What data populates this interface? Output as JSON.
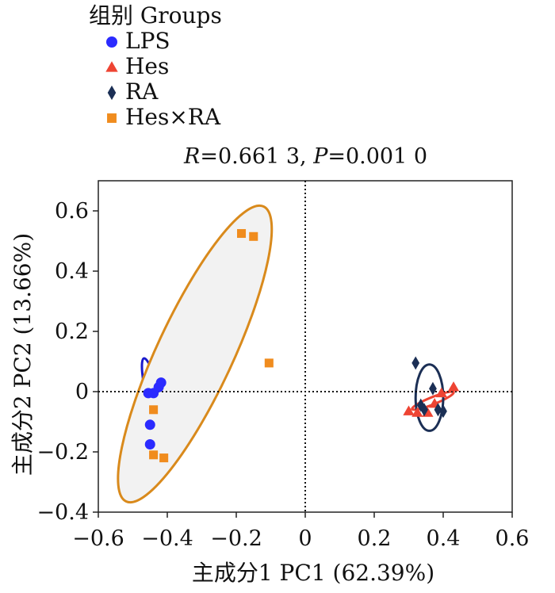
{
  "chart_data": {
    "type": "scatter",
    "title": "",
    "subtitle": {
      "r_label": "R",
      "r_value": "=0.661 3, ",
      "p_label": "P",
      "p_value": "=0.001 0"
    },
    "xlabel": "主成分1 PC1 (62.39%)",
    "ylabel": "主成分2 PC2 (13.66%)",
    "xlim": [
      -0.6,
      0.6
    ],
    "ylim": [
      -0.4,
      0.7
    ],
    "xticks": [
      -0.6,
      -0.4,
      -0.2,
      0,
      0.2,
      0.4,
      0.6
    ],
    "xtick_labels": [
      "−0.6",
      "−0.4",
      "−0.2",
      "0",
      "0.2",
      "0.4",
      "0.6"
    ],
    "yticks": [
      -0.4,
      -0.2,
      0,
      0.2,
      0.4,
      0.6
    ],
    "ytick_labels": [
      "−0.4",
      "−0.2",
      "0",
      "0.2",
      "0.4",
      "0.6"
    ],
    "reference_lines": {
      "x": 0,
      "y": 0,
      "style": "dotted"
    },
    "legend": {
      "title": "组别 Groups",
      "placement": "top-left-outside"
    },
    "series": [
      {
        "name": "LPS",
        "marker": "circle",
        "color": "#2b2bff",
        "points": [
          [
            -0.455,
            -0.005
          ],
          [
            -0.44,
            -0.005
          ],
          [
            -0.425,
            0.015
          ],
          [
            -0.418,
            0.03
          ],
          [
            -0.45,
            -0.11
          ],
          [
            -0.45,
            -0.175
          ]
        ],
        "ellipse": {
          "cx": -0.435,
          "cy": -0.04,
          "rx": 0.021,
          "ry": 0.155,
          "rotate": -14,
          "stroke": "#1a1acc"
        }
      },
      {
        "name": "Hes",
        "marker": "triangle",
        "color": "#ee4433",
        "points": [
          [
            0.3,
            -0.065
          ],
          [
            0.325,
            -0.07
          ],
          [
            0.355,
            -0.07
          ],
          [
            0.375,
            -0.04
          ],
          [
            0.395,
            -0.005
          ],
          [
            0.43,
            0.015
          ]
        ],
        "ellipse": {
          "cx": 0.37,
          "cy": -0.03,
          "rx": 0.065,
          "ry": 0.012,
          "rotate": -22,
          "stroke": "#ee4433"
        }
      },
      {
        "name": "RA",
        "marker": "diamond",
        "color": "#1b2f55",
        "points": [
          [
            0.32,
            0.095
          ],
          [
            0.335,
            -0.045
          ],
          [
            0.345,
            -0.06
          ],
          [
            0.37,
            0.01
          ],
          [
            0.385,
            -0.06
          ],
          [
            0.4,
            -0.065
          ]
        ],
        "ellipse": {
          "cx": 0.36,
          "cy": -0.02,
          "rx": 0.04,
          "ry": 0.11,
          "rotate": 0,
          "stroke": "#1b2f55"
        }
      },
      {
        "name": "Hes×RA",
        "marker": "square",
        "color": "#f08c1e",
        "points": [
          [
            -0.185,
            0.525
          ],
          [
            -0.15,
            0.515
          ],
          [
            -0.105,
            0.095
          ],
          [
            -0.44,
            -0.06
          ],
          [
            -0.44,
            -0.21
          ],
          [
            -0.41,
            -0.22
          ]
        ],
        "ellipse": {
          "cx": -0.32,
          "cy": 0.125,
          "rx": 0.11,
          "ry": 0.54,
          "rotate": 25,
          "stroke": "#d98a1c",
          "fill": "#f2f2f2"
        }
      }
    ]
  }
}
